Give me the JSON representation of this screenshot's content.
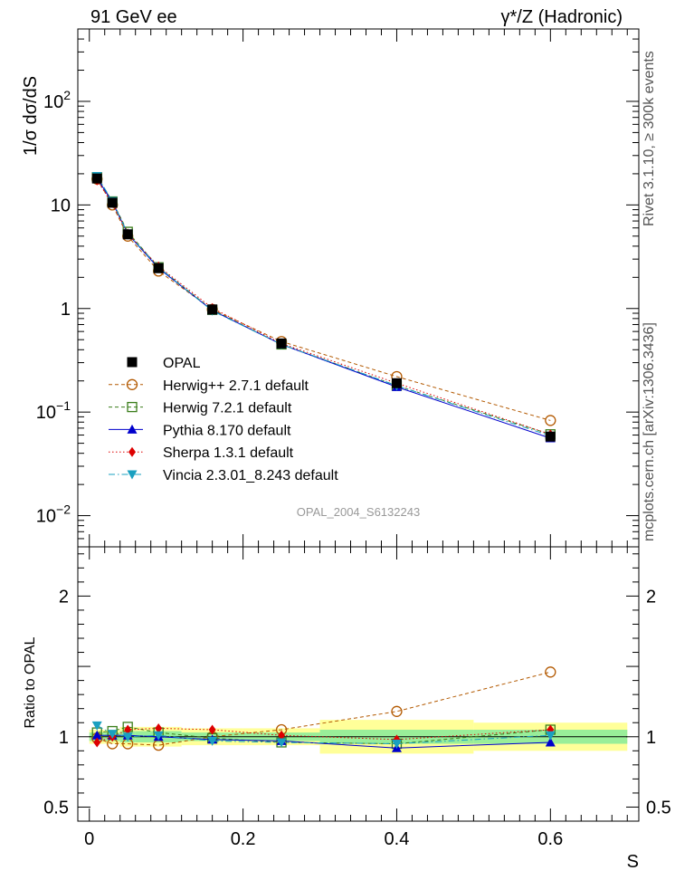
{
  "header": {
    "left_title": "91 GeV ee",
    "right_title": "γ*/Z (Hadronic)"
  },
  "side_labels": {
    "rivet": "Rivet 3.1.10, ≥ 300k events",
    "mcplots": "mcplots.cern.ch [arXiv:1306.3436]"
  },
  "watermark": "OPAL_2004_S6132243",
  "chart_data": [
    {
      "type": "line",
      "title": "",
      "xlabel": "S",
      "ylabel": "1/σ dσ/dS",
      "yscale": "log",
      "xlim": [
        -0.015,
        0.715
      ],
      "ylim": [
        0.005,
        500
      ],
      "y_ticks": [
        {
          "value": 0.01,
          "base": "10",
          "exp": "−2"
        },
        {
          "value": 0.1,
          "base": "10",
          "exp": "−1"
        },
        {
          "value": 1,
          "base": "1",
          "exp": ""
        },
        {
          "value": 10,
          "base": "10",
          "exp": ""
        },
        {
          "value": 100,
          "base": "10",
          "exp": "2"
        }
      ],
      "x_ticks": [
        "0",
        "0.2",
        "0.4",
        "0.6"
      ],
      "x": [
        0.01,
        0.03,
        0.05,
        0.09,
        0.16,
        0.25,
        0.4,
        0.6
      ],
      "series": [
        {
          "name": "OPAL",
          "color": "#000000",
          "marker": "square-filled",
          "style": "none",
          "values": [
            18.0,
            10.5,
            5.2,
            2.45,
            0.98,
            0.46,
            0.19,
            0.058
          ]
        },
        {
          "name": "Herwig++ 2.7.1 default",
          "color": "#b35900",
          "marker": "circle-open",
          "style": "dashed",
          "values": [
            17.8,
            10.0,
            5.0,
            2.3,
            0.98,
            0.48,
            0.22,
            0.083
          ]
        },
        {
          "name": "Herwig 7.2.1 default",
          "color": "#3a7d1a",
          "marker": "square-open",
          "style": "dashed",
          "values": [
            18.5,
            10.8,
            5.5,
            2.5,
            0.97,
            0.45,
            0.18,
            0.061
          ]
        },
        {
          "name": "Pythia 8.170 default",
          "color": "#0000cc",
          "marker": "triangle-up",
          "style": "solid",
          "values": [
            18.2,
            10.6,
            5.25,
            2.45,
            0.96,
            0.45,
            0.175,
            0.056
          ]
        },
        {
          "name": "Sherpa 1.3.1 default",
          "color": "#dd0000",
          "marker": "diamond",
          "style": "dotted",
          "values": [
            17.2,
            10.4,
            5.3,
            2.55,
            1.01,
            0.46,
            0.19,
            0.061
          ]
        },
        {
          "name": "Vincia 2.3.01_8.243 default",
          "color": "#1aa0c0",
          "marker": "triangle-down",
          "style": "dashdot",
          "values": [
            19.0,
            10.9,
            5.3,
            2.5,
            0.95,
            0.45,
            0.18,
            0.059
          ]
        }
      ]
    },
    {
      "type": "line",
      "title": "",
      "xlabel": "S",
      "ylabel": "Ratio to OPAL",
      "xlim": [
        -0.015,
        0.715
      ],
      "ylim": [
        0.4,
        2.35
      ],
      "y_ticks": [
        "0.5",
        "1",
        "2"
      ],
      "x_ticks": [
        "0",
        "0.2",
        "0.4",
        "0.6"
      ],
      "x": [
        0.01,
        0.03,
        0.05,
        0.09,
        0.16,
        0.25,
        0.4,
        0.6
      ],
      "bins": [
        0.0,
        0.02,
        0.04,
        0.06,
        0.12,
        0.2,
        0.3,
        0.5,
        0.7
      ],
      "band_inner": [
        0.03,
        0.03,
        0.04,
        0.04,
        0.03,
        0.03,
        0.05,
        0.05
      ],
      "band_outer": [
        0.05,
        0.05,
        0.07,
        0.07,
        0.06,
        0.06,
        0.12,
        0.1
      ],
      "series": [
        {
          "name": "Herwig++ 2.7.1 default",
          "color": "#b35900",
          "marker": "circle-open",
          "style": "dashed",
          "values": [
            0.99,
            0.95,
            0.95,
            0.94,
            1.0,
            1.05,
            1.18,
            1.46
          ]
        },
        {
          "name": "Herwig 7.2.1 default",
          "color": "#3a7d1a",
          "marker": "square-open",
          "style": "dashed",
          "values": [
            1.03,
            1.04,
            1.07,
            1.03,
            0.99,
            0.96,
            0.95,
            1.05
          ]
        },
        {
          "name": "Pythia 8.170 default",
          "color": "#0000cc",
          "marker": "triangle-up",
          "style": "solid",
          "values": [
            1.01,
            1.01,
            1.01,
            1.0,
            0.98,
            0.97,
            0.92,
            0.96
          ]
        },
        {
          "name": "Sherpa 1.3.1 default",
          "color": "#dd0000",
          "marker": "diamond",
          "style": "dotted",
          "values": [
            0.96,
            1.0,
            1.05,
            1.06,
            1.05,
            1.01,
            0.98,
            1.05
          ]
        },
        {
          "name": "Vincia 2.3.01_8.243 default",
          "color": "#1aa0c0",
          "marker": "triangle-down",
          "style": "dashdot",
          "values": [
            1.08,
            1.02,
            1.0,
            1.01,
            0.97,
            0.96,
            0.95,
            1.01
          ]
        }
      ]
    }
  ]
}
